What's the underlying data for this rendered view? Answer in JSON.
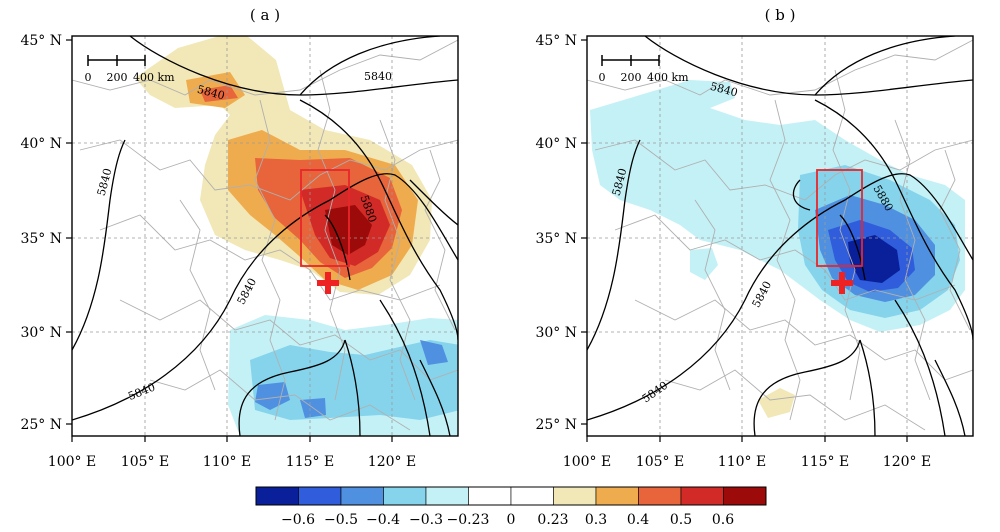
{
  "panels": [
    {
      "title": "( a )",
      "lat_labels": [
        "45° N",
        "40° N",
        "35° N",
        "30° N",
        "25° N"
      ],
      "lon_labels": [
        "100° E",
        "105° E",
        "110° E",
        "115° E",
        "120° E"
      ],
      "scale_bar": {
        "labels": [
          "0",
          "200",
          "400 km"
        ]
      },
      "contour_labels": [
        "5840",
        "5880",
        "5840",
        "5840",
        "5840",
        "5840"
      ],
      "shading": "positive-anomaly"
    },
    {
      "title": "( b )",
      "lat_labels": [
        "45° N",
        "40° N",
        "35° N",
        "30° N",
        "25° N"
      ],
      "lon_labels": [
        "100° E",
        "105° E",
        "110° E",
        "115° E",
        "120° E"
      ],
      "scale_bar": {
        "labels": [
          "0",
          "200",
          "400 km"
        ]
      },
      "contour_labels": [
        "5840",
        "5880",
        "5840",
        "5840",
        "5840"
      ],
      "shading": "negative-anomaly"
    }
  ],
  "colorbar": {
    "labels": [
      "−0.6",
      "−0.5",
      "−0.4",
      "−0.3",
      "−0.23",
      "0",
      "0.23",
      "0.3",
      "0.4",
      "0.5",
      "0.6"
    ],
    "colors": [
      "#0a1f9a",
      "#2f5ddb",
      "#4f90e0",
      "#85d4ec",
      "#c4f1f6",
      "#ffffff",
      "#ffffff",
      "#f2e7b6",
      "#efac4e",
      "#e8643a",
      "#d22a27",
      "#9c0a0a"
    ]
  },
  "colors": {
    "box": "#e8262a",
    "marker": "#ee2222",
    "contour": "#000000",
    "border": "#b0b0b0",
    "grid": "#9a9a9a"
  },
  "icons": {
    "marker": "plus-icon"
  }
}
